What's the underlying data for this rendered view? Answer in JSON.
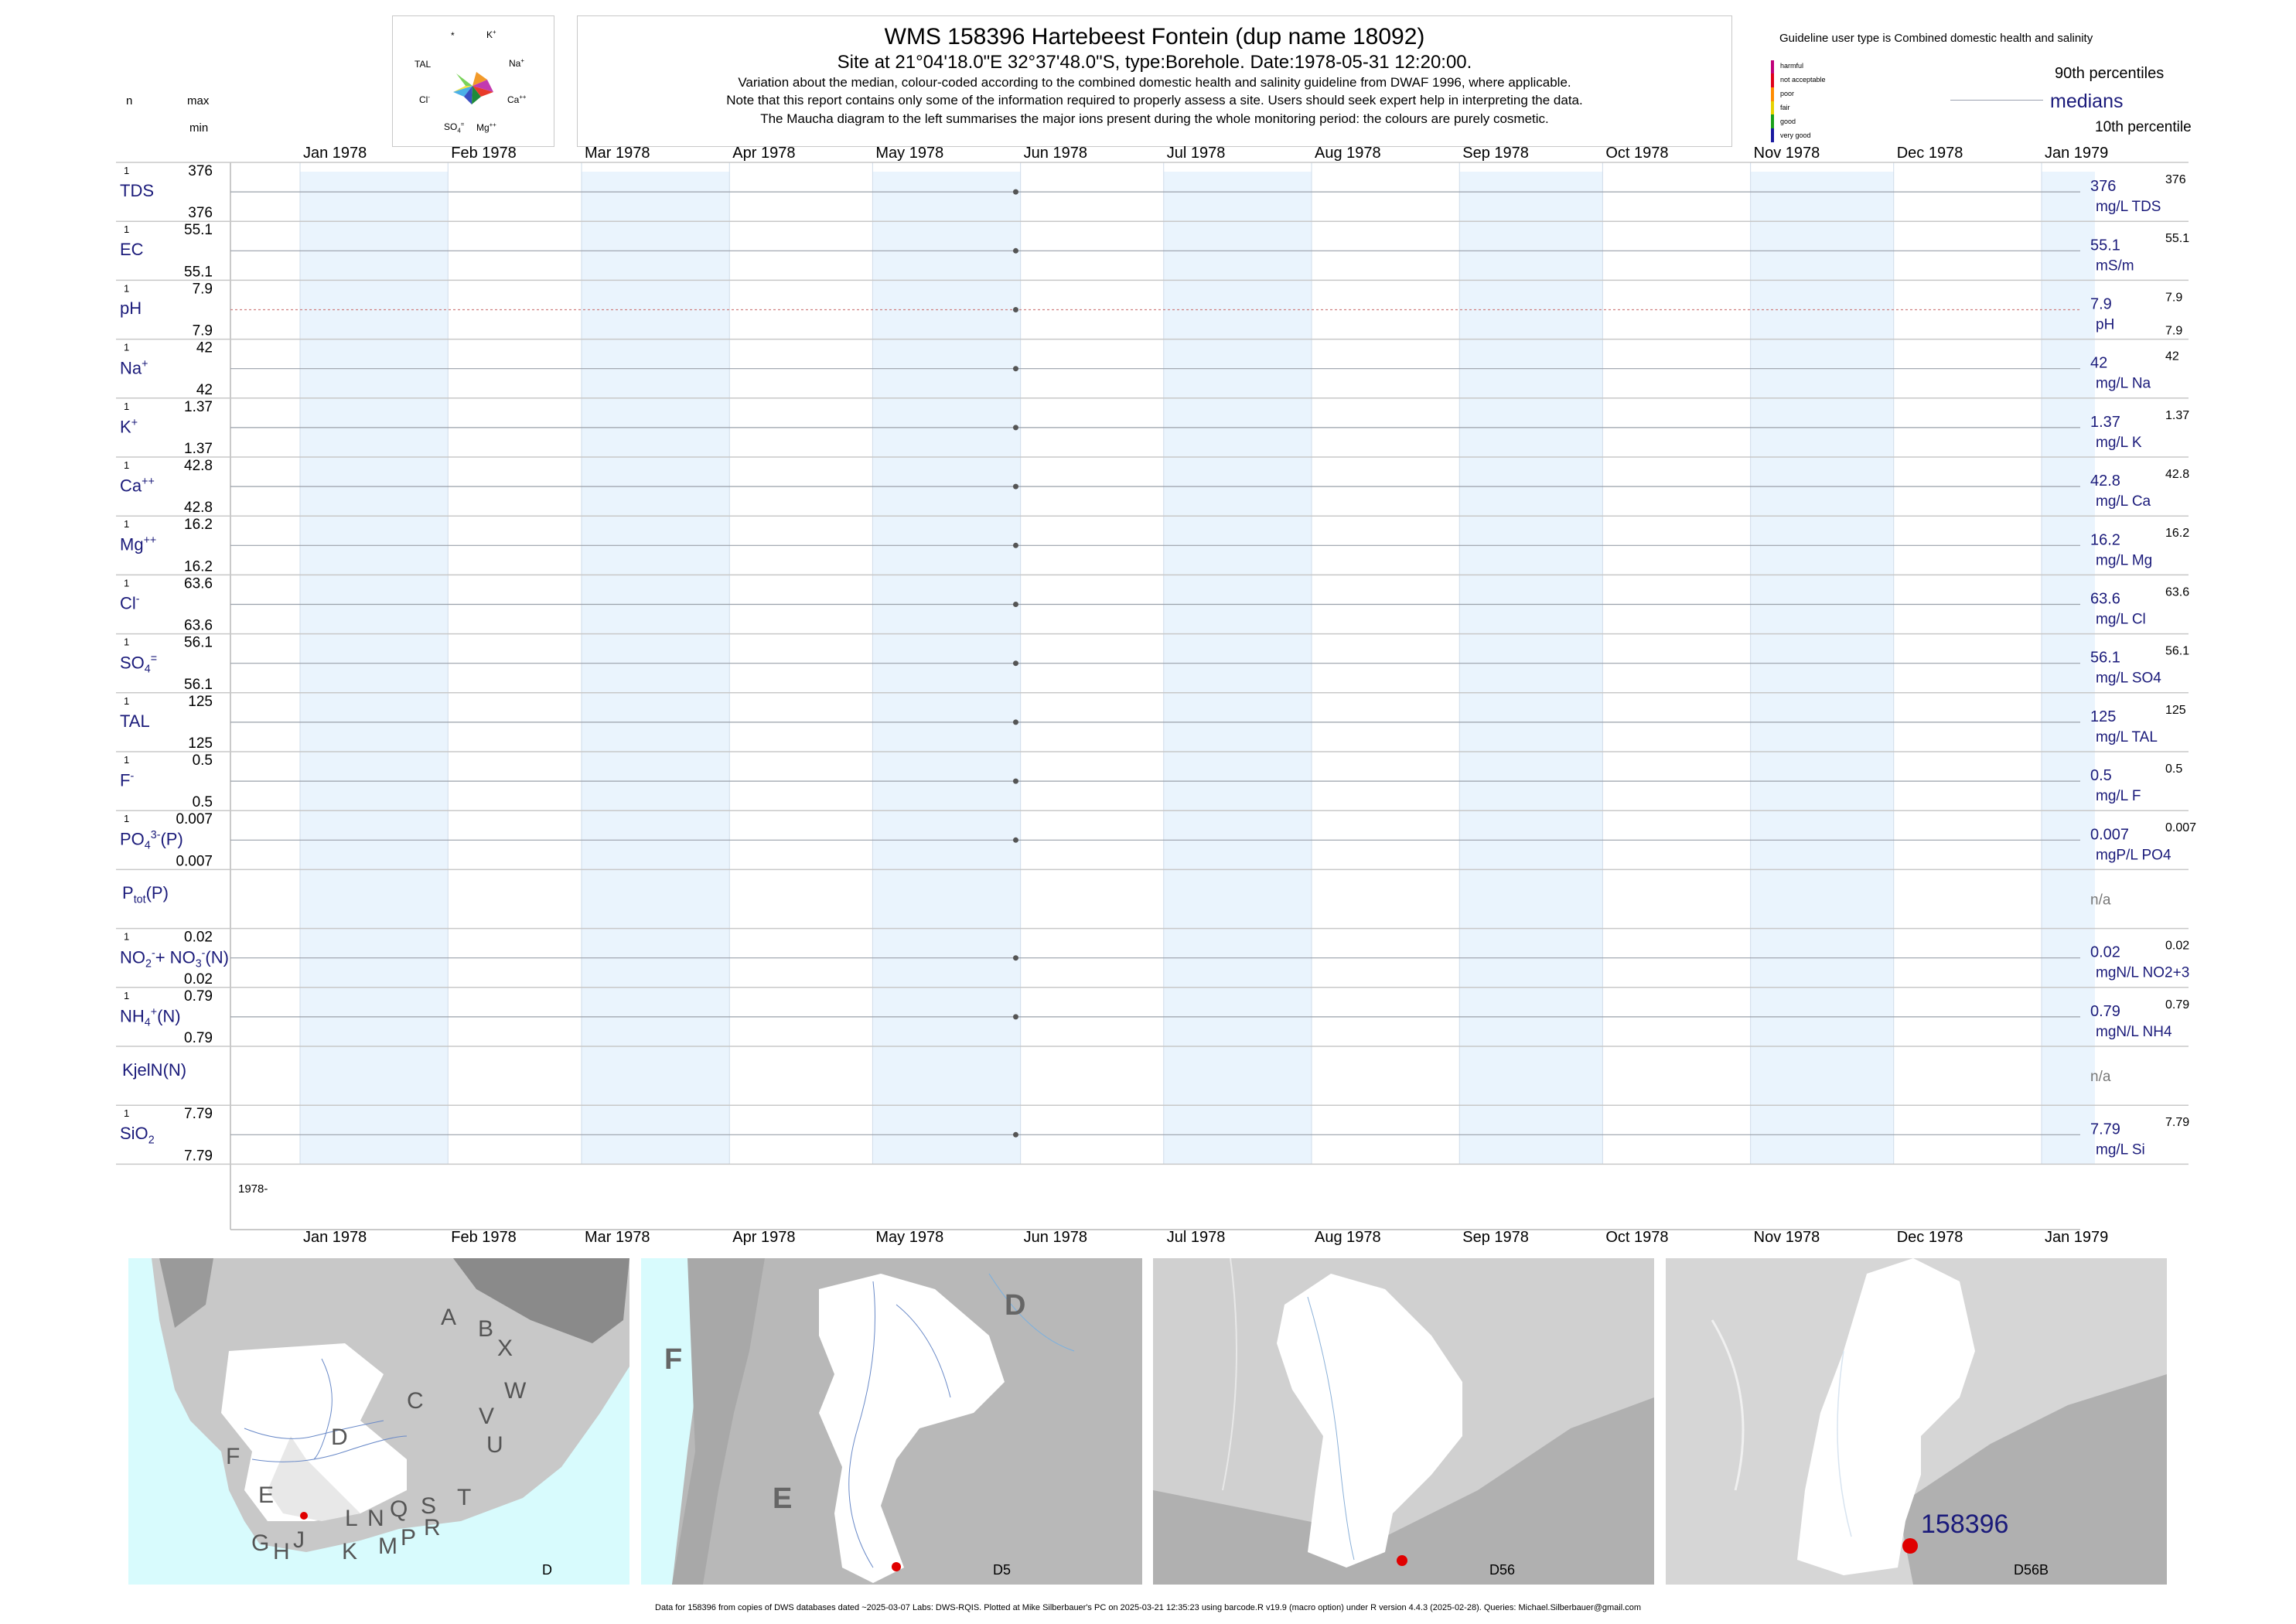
{
  "title": "WMS 158396  Hartebeest Fontein (dup name 18092)",
  "subtitle": "Site at 21°04'18.0\"E 32°37'48.0\"S, type:Borehole. Date:1978-05-31 12:20:00.",
  "notes": [
    "Variation about the median,  colour-coded according to the combined domestic health and salinity guideline from DWAF 1996, where applicable.",
    "Note that this report contains only some of the information required to properly assess a site. Users should seek expert help in interpreting the data.",
    "The Maucha diagram to the left summarises the major ions present during the whole monitoring period: the colours are purely cosmetic."
  ],
  "left_header": {
    "n": "n",
    "max": "max",
    "min": "min"
  },
  "maucha": {
    "labels": [
      "*",
      "K+",
      "TAL",
      "Na+",
      "Cl-",
      "Ca++",
      "SO4=",
      "Mg++"
    ]
  },
  "guideline": {
    "title": "Guideline user type is Combined domestic health and salinity",
    "classes": [
      {
        "label": "harmful",
        "color": "#c0007a"
      },
      {
        "label": "not acceptable",
        "color": "#e0001a"
      },
      {
        "label": "poor",
        "color": "#ff8c00"
      },
      {
        "label": "fair",
        "color": "#e6d200"
      },
      {
        "label": "good",
        "color": "#1aa01a"
      },
      {
        "label": "very good",
        "color": "#1a1aa0"
      }
    ],
    "p90": "90th percentiles",
    "medians": "medians",
    "p10": "10th percentile"
  },
  "months_top": [
    "Jan 1978",
    "Feb 1978",
    "Mar 1978",
    "Apr 1978",
    "May 1978",
    "Jun 1978",
    "Jul 1978",
    "Aug 1978",
    "Sep 1978",
    "Oct 1978",
    "Nov 1978",
    "Dec 1978",
    "Jan 1979"
  ],
  "months_bottom": [
    "Jan 1978",
    "Feb 1978",
    "Mar 1978",
    "Apr 1978",
    "May 1978",
    "Jun 1978",
    "Jul 1978",
    "Aug 1978",
    "Sep 1978",
    "Oct 1978",
    "Nov 1978",
    "Dec 1978",
    "Jan 1979"
  ],
  "bottom_year": "1978-",
  "chart_data": {
    "type": "scatter",
    "x_label": "",
    "x_range": [
      "1978-01-01",
      "1979-01-01"
    ],
    "sample_date": "1978-05-31",
    "series": [
      {
        "name_html": "TDS",
        "n": "1",
        "max": "376",
        "min": "376",
        "median": "376",
        "right_max": "376",
        "right_min": "",
        "unit": "mg/L TDS",
        "value": 376
      },
      {
        "name_html": "EC",
        "n": "1",
        "max": "55.1",
        "min": "55.1",
        "median": "55.1",
        "right_max": "55.1",
        "right_min": "",
        "unit": "mS/m",
        "value": 55.1
      },
      {
        "name_html": "pH",
        "n": "1",
        "max": "7.9",
        "min": "7.9",
        "median": "7.9",
        "right_max": "7.9",
        "right_min": "7.9",
        "unit": "pH",
        "value": 7.9,
        "dashed": true
      },
      {
        "name_html": "Na<sup>+</sup>",
        "n": "1",
        "max": "42",
        "min": "42",
        "median": "42",
        "right_max": "42",
        "right_min": "",
        "unit": "mg/L Na",
        "value": 42
      },
      {
        "name_html": "K<sup>+</sup>",
        "n": "1",
        "max": "1.37",
        "min": "1.37",
        "median": "1.37",
        "right_max": "1.37",
        "right_min": "",
        "unit": "mg/L K",
        "value": 1.37
      },
      {
        "name_html": "Ca<sup>++</sup>",
        "n": "1",
        "max": "42.8",
        "min": "42.8",
        "median": "42.8",
        "right_max": "42.8",
        "right_min": "",
        "unit": "mg/L Ca",
        "value": 42.8
      },
      {
        "name_html": "Mg<sup>++</sup>",
        "n": "1",
        "max": "16.2",
        "min": "16.2",
        "median": "16.2",
        "right_max": "16.2",
        "right_min": "",
        "unit": "mg/L Mg",
        "value": 16.2
      },
      {
        "name_html": "Cl<sup>-</sup>",
        "n": "1",
        "max": "63.6",
        "min": "63.6",
        "median": "63.6",
        "right_max": "63.6",
        "right_min": "",
        "unit": "mg/L Cl",
        "value": 63.6
      },
      {
        "name_html": "SO<sub>4</sub><sup>=</sup>",
        "n": "1",
        "max": "56.1",
        "min": "56.1",
        "median": "56.1",
        "right_max": "56.1",
        "right_min": "",
        "unit": "mg/L SO4",
        "value": 56.1
      },
      {
        "name_html": "TAL",
        "n": "1",
        "max": "125",
        "min": "125",
        "median": "125",
        "right_max": "125",
        "right_min": "",
        "unit": "mg/L TAL",
        "value": 125
      },
      {
        "name_html": "F<sup>-</sup>",
        "n": "1",
        "max": "0.5",
        "min": "0.5",
        "median": "0.5",
        "right_max": "0.5",
        "right_min": "",
        "unit": "mg/L F",
        "value": 0.5
      },
      {
        "name_html": "PO<sub>4</sub><sup>3-</sup>(P)",
        "n": "1",
        "max": "0.007",
        "min": "0.007",
        "median": "0.007",
        "right_max": "0.007",
        "right_min": "",
        "unit": "mgP/L PO4",
        "value": 0.007
      },
      {
        "name_html": "P<sub>tot</sub>(P)",
        "n": "",
        "max": "",
        "min": "",
        "median": "n/a",
        "right_max": "",
        "right_min": "",
        "unit": "",
        "value": null
      },
      {
        "name_html": "NO<sub>2</sub><sup>-</sup>+ NO<sub>3</sub><sup>-</sup>(N)",
        "n": "1",
        "max": "0.02",
        "min": "0.02",
        "median": "0.02",
        "right_max": "0.02",
        "right_min": "",
        "unit": "mgN/L NO2+3",
        "value": 0.02
      },
      {
        "name_html": "NH<sub>4</sub><sup>+</sup>(N)",
        "n": "1",
        "max": "0.79",
        "min": "0.79",
        "median": "0.79",
        "right_max": "0.79",
        "right_min": "",
        "unit": "mgN/L NH4",
        "value": 0.79
      },
      {
        "name_html": "KjelN(N)",
        "n": "",
        "max": "",
        "min": "",
        "median": "n/a",
        "right_max": "",
        "right_min": "",
        "unit": "",
        "value": null
      },
      {
        "name_html": "SiO<sub>2</sub>",
        "n": "1",
        "max": "7.79",
        "min": "7.79",
        "median": "7.79",
        "right_max": "7.79",
        "right_min": "",
        "unit": "mg/L Si",
        "value": 7.79
      }
    ]
  },
  "maps": {
    "map1_letters": [
      "A",
      "B",
      "X",
      "C",
      "W",
      "D",
      "V",
      "U",
      "T",
      "F",
      "E",
      "G",
      "H",
      "J",
      "L",
      "N",
      "Q",
      "S",
      "R",
      "K",
      "M",
      "P"
    ],
    "map1_caption": "D",
    "map2_letters": [
      "D",
      "F",
      "E"
    ],
    "map2_caption": "D5",
    "map3_caption": "D56",
    "map4_caption": "D56B",
    "site_label": "158396"
  },
  "footer": "Data for 158396 from copies of DWS databases dated ~2025-03-07 Labs: DWS-RQIS. Plotted at Mike Silberbauer's PC on 2025-03-21 12:35:23 using barcode.R v19.9 (macro option) under R version 4.4.3 (2025-02-28). Queries: Michael.Silberbauer@gmail.com"
}
